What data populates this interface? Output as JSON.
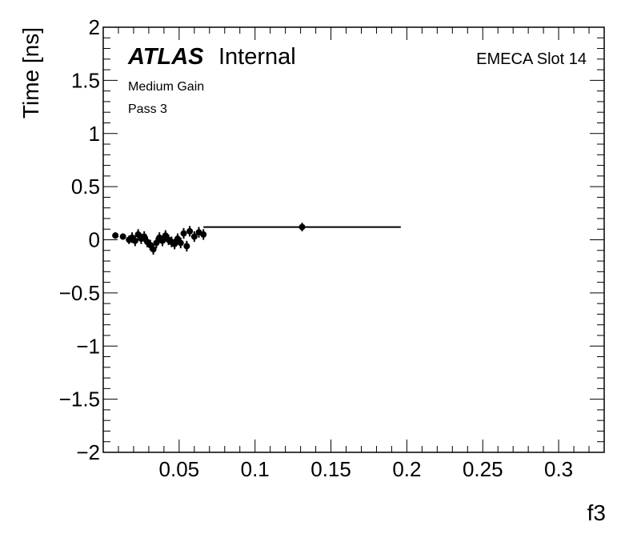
{
  "chart_data": {
    "type": "scatter",
    "xlabel": "f3",
    "ylabel": "Time [ns]",
    "xlim": [
      0.0,
      0.33
    ],
    "ylim": [
      -2,
      2
    ],
    "x_ticks": [
      "0.05",
      "0.1",
      "0.15",
      "0.2",
      "0.25",
      "0.3"
    ],
    "x_tick_values": [
      0.05,
      0.1,
      0.15,
      0.2,
      0.25,
      0.3
    ],
    "y_ticks": [
      "2",
      "1.5",
      "1",
      "0.5",
      "0",
      "−0.5",
      "−1",
      "−1.5",
      "−2"
    ],
    "y_tick_values": [
      2,
      1.5,
      1,
      0.5,
      0,
      -0.5,
      -1,
      -1.5,
      -2
    ],
    "grid": false,
    "marker_color": "#000000",
    "points": [
      {
        "x": 0.008,
        "y": 0.04,
        "xerr": 0.002,
        "yerr": 0.03
      },
      {
        "x": 0.013,
        "y": 0.03,
        "xerr": 0.002,
        "yerr": 0.03
      },
      {
        "x": 0.017,
        "y": 0.0,
        "xerr": 0.002,
        "yerr": 0.04
      },
      {
        "x": 0.019,
        "y": 0.02,
        "xerr": 0.002,
        "yerr": 0.05
      },
      {
        "x": 0.021,
        "y": -0.01,
        "xerr": 0.002,
        "yerr": 0.05
      },
      {
        "x": 0.023,
        "y": 0.05,
        "xerr": 0.002,
        "yerr": 0.05
      },
      {
        "x": 0.025,
        "y": 0.01,
        "xerr": 0.002,
        "yerr": 0.05
      },
      {
        "x": 0.027,
        "y": 0.03,
        "xerr": 0.002,
        "yerr": 0.05
      },
      {
        "x": 0.029,
        "y": -0.02,
        "xerr": 0.002,
        "yerr": 0.05
      },
      {
        "x": 0.031,
        "y": -0.05,
        "xerr": 0.002,
        "yerr": 0.05
      },
      {
        "x": 0.033,
        "y": -0.09,
        "xerr": 0.002,
        "yerr": 0.05
      },
      {
        "x": 0.035,
        "y": -0.03,
        "xerr": 0.002,
        "yerr": 0.05
      },
      {
        "x": 0.037,
        "y": 0.02,
        "xerr": 0.002,
        "yerr": 0.05
      },
      {
        "x": 0.039,
        "y": -0.01,
        "xerr": 0.002,
        "yerr": 0.05
      },
      {
        "x": 0.041,
        "y": 0.04,
        "xerr": 0.002,
        "yerr": 0.05
      },
      {
        "x": 0.043,
        "y": 0.0,
        "xerr": 0.002,
        "yerr": 0.05
      },
      {
        "x": 0.045,
        "y": -0.02,
        "xerr": 0.002,
        "yerr": 0.05
      },
      {
        "x": 0.047,
        "y": -0.04,
        "xerr": 0.002,
        "yerr": 0.05
      },
      {
        "x": 0.049,
        "y": 0.01,
        "xerr": 0.002,
        "yerr": 0.05
      },
      {
        "x": 0.051,
        "y": -0.03,
        "xerr": 0.002,
        "yerr": 0.05
      },
      {
        "x": 0.053,
        "y": 0.06,
        "xerr": 0.002,
        "yerr": 0.05
      },
      {
        "x": 0.055,
        "y": -0.06,
        "xerr": 0.002,
        "yerr": 0.05
      },
      {
        "x": 0.057,
        "y": 0.08,
        "xerr": 0.002,
        "yerr": 0.05
      },
      {
        "x": 0.06,
        "y": 0.03,
        "xerr": 0.002,
        "yerr": 0.05
      },
      {
        "x": 0.063,
        "y": 0.07,
        "xerr": 0.002,
        "yerr": 0.05
      },
      {
        "x": 0.066,
        "y": 0.05,
        "xerr": 0.002,
        "yerr": 0.05
      },
      {
        "x": 0.131,
        "y": 0.12,
        "xerr": 0.065,
        "yerr": 0.04
      }
    ],
    "annotations": {
      "atlas_bold": "ATLAS",
      "atlas_rest": "Internal",
      "line1": "Medium Gain",
      "line2": "Pass 3",
      "slot": "EMECA Slot 14"
    }
  }
}
